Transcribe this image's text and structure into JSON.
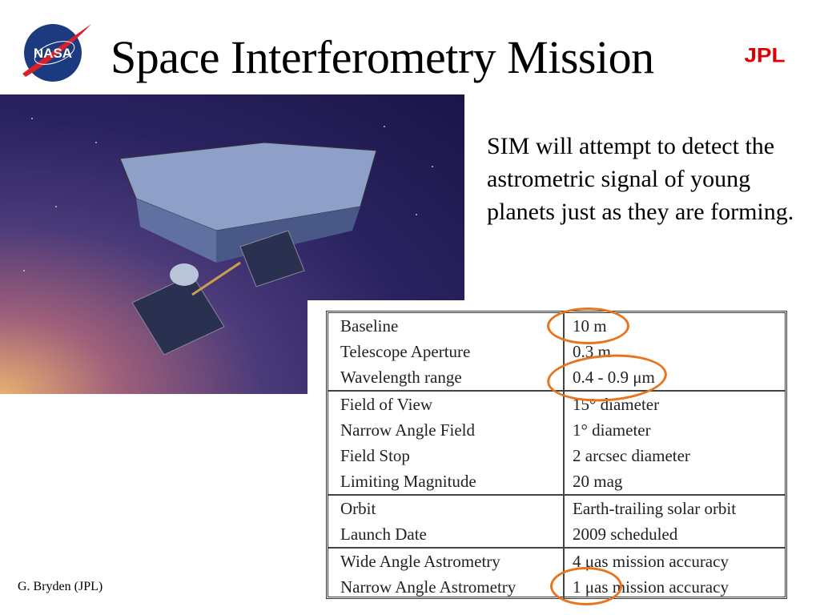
{
  "slide": {
    "title": "Space Interferometry Mission",
    "logos": {
      "left": "NASA",
      "right": "JPL"
    },
    "description": "SIM will attempt to detect the astrometric signal of young planets just as they are forming.",
    "footer": "G. Bryden (JPL)",
    "highlight_color": "#e8741e",
    "jpl_color": "#e00000"
  },
  "specs": [
    [
      {
        "label": "Baseline",
        "value": "10 m",
        "highlighted": true
      },
      {
        "label": "Telescope Aperture",
        "value": "0.3 m"
      },
      {
        "label": "Wavelength range",
        "value": "0.4 - 0.9 μm",
        "highlighted": true
      }
    ],
    [
      {
        "label": "Field of View",
        "value": "15° diameter"
      },
      {
        "label": "Narrow Angle Field",
        "value": "1° diameter"
      },
      {
        "label": "Field Stop",
        "value": "2 arcsec diameter"
      },
      {
        "label": "Limiting Magnitude",
        "value": "20 mag"
      }
    ],
    [
      {
        "label": "Orbit",
        "value": "Earth-trailing solar orbit"
      },
      {
        "label": "Launch Date",
        "value": "2009 scheduled"
      }
    ],
    [
      {
        "label": "Wide Angle Astrometry",
        "value": "4 μas mission accuracy"
      },
      {
        "label": "Narrow Angle Astrometry",
        "value": "1 μas mission accuracy",
        "highlighted": true
      }
    ]
  ]
}
